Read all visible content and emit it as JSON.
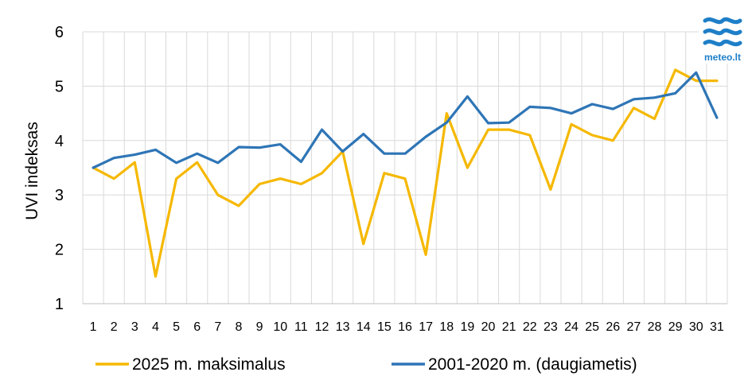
{
  "chart_data": {
    "type": "line",
    "title": "",
    "xlabel": "",
    "ylabel": "UVI indeksas",
    "ylim": [
      1,
      6
    ],
    "yticks": [
      1,
      2,
      3,
      4,
      5,
      6
    ],
    "grid": true,
    "legend_position": "bottom",
    "categories": [
      "1",
      "2",
      "3",
      "4",
      "5",
      "6",
      "7",
      "8",
      "9",
      "10",
      "11",
      "12",
      "13",
      "14",
      "15",
      "16",
      "17",
      "18",
      "19",
      "20",
      "21",
      "22",
      "23",
      "24",
      "25",
      "26",
      "27",
      "28",
      "29",
      "30",
      "31"
    ],
    "series": [
      {
        "name": "2025 m. maksimalus",
        "color": "#f5b800",
        "values": [
          3.5,
          3.3,
          3.6,
          1.5,
          3.3,
          3.6,
          3.0,
          2.8,
          3.2,
          3.3,
          3.2,
          3.4,
          3.8,
          2.1,
          3.4,
          3.3,
          1.9,
          4.5,
          3.5,
          4.2,
          4.2,
          4.1,
          3.1,
          4.3,
          4.1,
          4.0,
          4.6,
          4.4,
          5.3,
          5.1,
          5.1
        ]
      },
      {
        "name": "2001-2020 m. (daugiametis)",
        "color": "#2e75b6",
        "values": [
          3.5,
          3.68,
          3.74,
          3.83,
          3.59,
          3.76,
          3.59,
          3.88,
          3.87,
          3.93,
          3.61,
          4.2,
          3.8,
          4.12,
          3.76,
          3.76,
          4.07,
          4.33,
          4.81,
          4.32,
          4.33,
          4.62,
          4.6,
          4.5,
          4.67,
          4.58,
          4.76,
          4.79,
          4.87,
          5.25,
          4.42
        ]
      }
    ]
  },
  "logo": {
    "text": "meteo.lt",
    "color": "#1e7fc8"
  }
}
